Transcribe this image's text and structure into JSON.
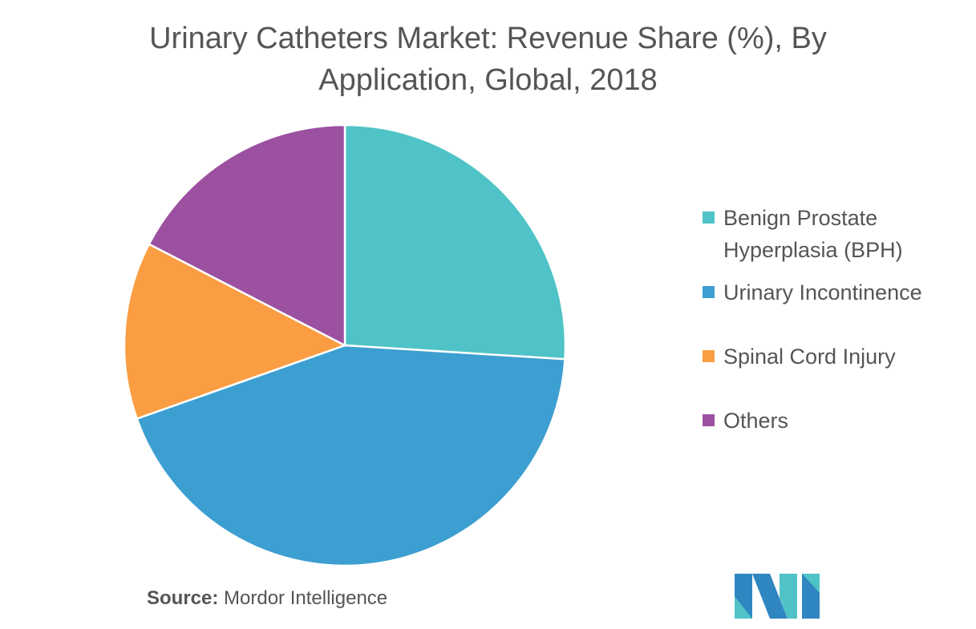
{
  "chart_data": {
    "type": "pie",
    "title": "Urinary Catheters Market: Revenue Share (%), By Application, Global, 2018",
    "title_lines": [
      "Urinary Catheters Market: Revenue Share (%), By",
      "Application, Global, 2018"
    ],
    "categories": [
      "Benign Prostate Hyperplasia (BPH)",
      "Urinary Incontinence",
      "Spinal Cord Injury",
      "Others"
    ],
    "legend_lines": [
      [
        "Benign Prostate",
        "Hyperplasia (BPH)"
      ],
      [
        "Urinary Incontinence"
      ],
      [
        "Spinal Cord Injury"
      ],
      [
        "Others"
      ]
    ],
    "values": [
      26,
      43.6,
      13,
      17.4
    ],
    "colors": [
      "#4fc3c7",
      "#3d9fd1",
      "#fb9d42",
      "#9b51a0"
    ],
    "start_angle": "12 o'clock, clockwise",
    "legend_position": "right"
  },
  "source": {
    "label": "Source:",
    "text": "Mordor Intelligence"
  },
  "logo": {
    "text": "MI",
    "colors": [
      "#2f86c0",
      "#4fc3c7"
    ]
  }
}
